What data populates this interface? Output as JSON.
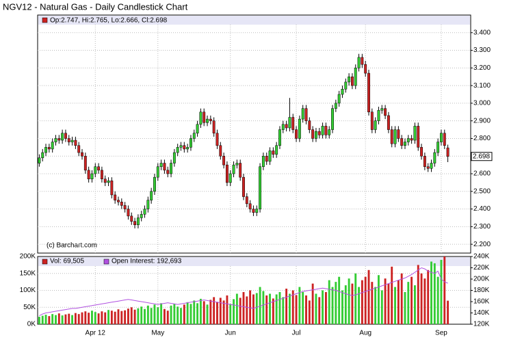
{
  "chart_data": {
    "type": "candlestick",
    "title": "NGV12 - Natural Gas - Daily Candlestick Chart",
    "ohlc_label": "Op:2.747, Hi:2.765, Lo:2.666, Cl:2.698",
    "copyright": "(c) Barchart.com",
    "up_color": "#33cc33",
    "down_color": "#cc2222",
    "grid": true,
    "categories": [
      null,
      null,
      null,
      null,
      null,
      null,
      null,
      null,
      null,
      null,
      null,
      null,
      null,
      null,
      null,
      null,
      null,
      "Apr 12",
      null,
      null,
      null,
      null,
      null,
      null,
      null,
      null,
      null,
      null,
      null,
      null,
      null,
      null,
      null,
      null,
      null,
      null,
      "May",
      null,
      null,
      null,
      null,
      null,
      null,
      null,
      null,
      null,
      null,
      null,
      null,
      null,
      null,
      null,
      null,
      null,
      null,
      null,
      null,
      null,
      "Jun",
      null,
      null,
      null,
      null,
      null,
      null,
      null,
      null,
      null,
      null,
      null,
      null,
      null,
      null,
      null,
      null,
      null,
      null,
      null,
      "Jul",
      null,
      null,
      null,
      null,
      null,
      null,
      null,
      null,
      null,
      null,
      null,
      null,
      null,
      null,
      null,
      null,
      null,
      null,
      null,
      null,
      "Aug",
      null,
      null,
      null,
      null,
      null,
      null,
      null,
      null,
      null,
      null,
      null,
      null,
      null,
      null,
      null,
      null,
      null,
      null,
      null,
      null,
      null,
      null,
      "Sep",
      null,
      null
    ],
    "open": [
      2.66,
      2.69,
      2.72,
      2.75,
      2.74,
      2.78,
      2.8,
      2.79,
      2.83,
      2.8,
      2.78,
      2.79,
      2.76,
      2.72,
      2.7,
      2.62,
      2.57,
      2.6,
      2.64,
      2.62,
      2.57,
      2.55,
      2.56,
      2.48,
      2.45,
      2.44,
      2.42,
      2.4,
      2.36,
      2.33,
      2.31,
      2.35,
      2.37,
      2.4,
      2.45,
      2.5,
      2.58,
      2.64,
      2.66,
      2.62,
      2.6,
      2.66,
      2.72,
      2.75,
      2.76,
      2.74,
      2.75,
      2.8,
      2.83,
      2.88,
      2.95,
      2.89,
      2.91,
      2.9,
      2.83,
      2.76,
      2.7,
      2.65,
      2.55,
      2.6,
      2.65,
      2.66,
      2.58,
      2.47,
      2.43,
      2.4,
      2.38,
      2.4,
      2.64,
      2.7,
      2.67,
      2.73,
      2.71,
      2.76,
      2.85,
      2.88,
      2.86,
      2.92,
      2.85,
      2.8,
      2.91,
      2.97,
      2.9,
      2.85,
      2.8,
      2.84,
      2.82,
      2.87,
      2.82,
      2.85,
      2.97,
      3.0,
      3.05,
      3.08,
      3.12,
      3.15,
      3.1,
      3.2,
      3.26,
      3.22,
      3.17,
      2.95,
      2.85,
      2.9,
      2.96,
      2.97,
      2.93,
      2.85,
      2.77,
      2.85,
      2.8,
      2.76,
      2.78,
      2.8,
      2.79,
      2.87,
      2.75,
      2.7,
      2.64,
      2.63,
      2.66,
      2.72,
      2.78,
      2.83,
      2.747
    ],
    "high": [
      2.71,
      2.74,
      2.77,
      2.77,
      2.8,
      2.82,
      2.82,
      2.85,
      2.85,
      2.82,
      2.81,
      2.81,
      2.78,
      2.74,
      2.72,
      2.64,
      2.62,
      2.66,
      2.66,
      2.64,
      2.59,
      2.58,
      2.58,
      2.5,
      2.47,
      2.46,
      2.44,
      2.42,
      2.38,
      2.35,
      2.37,
      2.39,
      2.42,
      2.47,
      2.52,
      2.6,
      2.66,
      2.68,
      2.68,
      2.64,
      2.68,
      2.74,
      2.77,
      2.78,
      2.78,
      2.77,
      2.82,
      2.85,
      2.9,
      2.97,
      2.97,
      2.93,
      2.93,
      2.92,
      2.85,
      2.78,
      2.72,
      2.67,
      2.62,
      2.67,
      2.68,
      2.68,
      2.6,
      2.49,
      2.45,
      2.42,
      2.42,
      2.66,
      2.72,
      2.72,
      2.75,
      2.75,
      2.78,
      2.87,
      2.9,
      2.9,
      3.03,
      2.94,
      2.87,
      2.93,
      2.99,
      2.99,
      2.92,
      2.87,
      2.86,
      2.86,
      2.89,
      2.89,
      2.87,
      2.99,
      3.02,
      3.07,
      3.1,
      3.14,
      3.17,
      3.17,
      3.22,
      3.28,
      3.28,
      3.24,
      3.19,
      2.97,
      2.92,
      2.98,
      2.99,
      2.99,
      2.95,
      2.87,
      2.87,
      2.87,
      2.82,
      2.8,
      2.82,
      2.82,
      2.89,
      2.89,
      2.77,
      2.72,
      2.66,
      2.68,
      2.74,
      2.8,
      2.85,
      2.85,
      2.765
    ],
    "low": [
      2.64,
      2.67,
      2.7,
      2.72,
      2.72,
      2.76,
      2.77,
      2.77,
      2.78,
      2.76,
      2.76,
      2.74,
      2.7,
      2.68,
      2.6,
      2.55,
      2.55,
      2.58,
      2.6,
      2.55,
      2.53,
      2.53,
      2.46,
      2.43,
      2.42,
      2.4,
      2.38,
      2.34,
      2.31,
      2.29,
      2.29,
      2.33,
      2.35,
      2.38,
      2.43,
      2.48,
      2.56,
      2.62,
      2.6,
      2.58,
      2.58,
      2.64,
      2.7,
      2.73,
      2.72,
      2.72,
      2.73,
      2.78,
      2.81,
      2.86,
      2.87,
      2.87,
      2.88,
      2.81,
      2.74,
      2.68,
      2.63,
      2.53,
      2.53,
      2.58,
      2.63,
      2.56,
      2.45,
      2.41,
      2.38,
      2.36,
      2.36,
      2.38,
      2.62,
      2.65,
      2.65,
      2.69,
      2.69,
      2.74,
      2.83,
      2.84,
      2.84,
      2.83,
      2.78,
      2.78,
      2.89,
      2.88,
      2.83,
      2.78,
      2.78,
      2.8,
      2.8,
      2.8,
      2.8,
      2.83,
      2.95,
      2.98,
      3.03,
      3.06,
      3.1,
      3.08,
      3.08,
      3.18,
      3.2,
      3.15,
      2.93,
      2.83,
      2.83,
      2.88,
      2.94,
      2.91,
      2.83,
      2.75,
      2.75,
      2.78,
      2.74,
      2.74,
      2.76,
      2.77,
      2.77,
      2.73,
      2.68,
      2.62,
      2.61,
      2.61,
      2.64,
      2.7,
      2.76,
      2.74,
      2.666
    ],
    "close": [
      2.69,
      2.72,
      2.75,
      2.74,
      2.78,
      2.8,
      2.79,
      2.83,
      2.8,
      2.78,
      2.79,
      2.76,
      2.72,
      2.7,
      2.62,
      2.57,
      2.6,
      2.64,
      2.62,
      2.57,
      2.55,
      2.56,
      2.48,
      2.45,
      2.44,
      2.42,
      2.4,
      2.36,
      2.33,
      2.31,
      2.35,
      2.37,
      2.4,
      2.45,
      2.5,
      2.58,
      2.64,
      2.66,
      2.62,
      2.6,
      2.66,
      2.72,
      2.75,
      2.76,
      2.74,
      2.75,
      2.8,
      2.83,
      2.88,
      2.95,
      2.89,
      2.91,
      2.9,
      2.83,
      2.76,
      2.7,
      2.65,
      2.55,
      2.6,
      2.65,
      2.66,
      2.58,
      2.47,
      2.43,
      2.4,
      2.38,
      2.4,
      2.64,
      2.7,
      2.67,
      2.73,
      2.71,
      2.76,
      2.85,
      2.88,
      2.86,
      2.92,
      2.85,
      2.8,
      2.91,
      2.97,
      2.9,
      2.85,
      2.8,
      2.84,
      2.82,
      2.87,
      2.82,
      2.85,
      2.97,
      3.0,
      3.05,
      3.08,
      3.12,
      3.15,
      3.1,
      3.2,
      3.26,
      3.22,
      3.17,
      2.95,
      2.85,
      2.9,
      2.96,
      2.97,
      2.93,
      2.85,
      2.77,
      2.85,
      2.8,
      2.76,
      2.78,
      2.8,
      2.79,
      2.87,
      2.75,
      2.7,
      2.64,
      2.63,
      2.66,
      2.72,
      2.78,
      2.83,
      2.76,
      2.698
    ],
    "last_label": {
      "value": 2.698,
      "label": "2.698"
    },
    "ylim": [
      2.15,
      3.5
    ],
    "yticks": [
      {
        "value": 2.2,
        "label": "2.200"
      },
      {
        "value": 2.3,
        "label": "2.300"
      },
      {
        "value": 2.4,
        "label": "2.400"
      },
      {
        "value": 2.5,
        "label": "2.500"
      },
      {
        "value": 2.6,
        "label": "2.600"
      },
      {
        "value": 2.7,
        "label": "2.700"
      },
      {
        "value": 2.8,
        "label": "2.800"
      },
      {
        "value": 2.9,
        "label": "2.900"
      },
      {
        "value": 3.0,
        "label": "3.000"
      },
      {
        "value": 3.1,
        "label": "3.100"
      },
      {
        "value": 3.2,
        "label": "3.200"
      },
      {
        "value": 3.3,
        "label": "3.300"
      },
      {
        "value": 3.4,
        "label": "3.400"
      }
    ],
    "volume": {
      "ylim": [
        0,
        200000
      ],
      "yticks": [
        {
          "value": 0,
          "label": "0K"
        },
        {
          "value": 50000,
          "label": "50K"
        },
        {
          "value": 100000,
          "label": "100K"
        },
        {
          "value": 150000,
          "label": "150K"
        },
        {
          "value": 200000,
          "label": "200K"
        }
      ],
      "y2lim": [
        120000,
        240000
      ],
      "y2ticks": [
        {
          "value": 120000,
          "label": "120K"
        },
        {
          "value": 140000,
          "label": "140K"
        },
        {
          "value": 160000,
          "label": "160K"
        },
        {
          "value": 180000,
          "label": "180K"
        },
        {
          "value": 200000,
          "label": "200K"
        },
        {
          "value": 220000,
          "label": "220K"
        },
        {
          "value": 240000,
          "label": "240K"
        }
      ],
      "series": [
        {
          "name": "Vol: 69,505",
          "values": [
            22000,
            25000,
            28000,
            24000,
            30000,
            27000,
            32000,
            26000,
            29000,
            31000,
            27000,
            33000,
            30000,
            35000,
            38000,
            34000,
            40000,
            36000,
            32000,
            38000,
            35000,
            42000,
            40000,
            37000,
            44000,
            39000,
            41000,
            46000,
            50000,
            43000,
            47000,
            52000,
            45000,
            55000,
            48000,
            58000,
            50000,
            62000,
            45000,
            40000,
            55000,
            60000,
            52000,
            48000,
            58000,
            65000,
            60000,
            70000,
            62000,
            75000,
            68000,
            58000,
            72000,
            80000,
            66000,
            78000,
            70000,
            85000,
            60000,
            74000,
            90000,
            78000,
            95000,
            82000,
            100000,
            88000,
            92000,
            110000,
            98000,
            85000,
            90000,
            76000,
            88000,
            95000,
            80000,
            105000,
            90000,
            100000,
            86000,
            110000,
            95000,
            85000,
            70000,
            120000,
            90000,
            80000,
            100000,
            95000,
            130000,
            110000,
            125000,
            140000,
            100000,
            115000,
            135000,
            120000,
            150000,
            110000,
            130000,
            140000,
            160000,
            125000,
            110000,
            145000,
            100000,
            135000,
            120000,
            170000,
            110000,
            130000,
            150000,
            95000,
            125000,
            140000,
            115000,
            175000,
            150000,
            135000,
            160000,
            185000,
            180000,
            140000,
            190000,
            200000,
            69505
          ]
        },
        {
          "name": "Open Interest: 192,693",
          "color": "#b050e0",
          "axis": "y2",
          "values": [
            135000,
            138000,
            140000,
            141000,
            142000,
            143000,
            144000,
            145000,
            146000,
            147000,
            148000,
            148000,
            149000,
            150000,
            151000,
            152000,
            153000,
            154000,
            155000,
            156000,
            157000,
            158000,
            159000,
            160000,
            161000,
            162000,
            163000,
            164000,
            163000,
            162000,
            161000,
            160000,
            159000,
            158000,
            157000,
            156000,
            155000,
            156000,
            157000,
            158000,
            157000,
            156000,
            155000,
            156000,
            157000,
            158000,
            159000,
            160000,
            161000,
            162000,
            163000,
            162000,
            161000,
            160000,
            159000,
            158000,
            157000,
            156000,
            155000,
            154000,
            153000,
            152000,
            151000,
            150000,
            149000,
            148000,
            150000,
            152000,
            154000,
            156000,
            158000,
            160000,
            162000,
            164000,
            166000,
            168000,
            170000,
            172000,
            174000,
            176000,
            178000,
            179000,
            180000,
            181000,
            182000,
            183000,
            184000,
            183000,
            182000,
            181000,
            180000,
            178000,
            176000,
            174000,
            172000,
            171000,
            172000,
            174000,
            176000,
            178000,
            180000,
            182000,
            184000,
            186000,
            188000,
            190000,
            192000,
            194000,
            196000,
            198000,
            200000,
            202000,
            205000,
            208000,
            212000,
            216000,
            220000,
            218000,
            214000,
            212000,
            210000,
            214000,
            200000,
            195000,
            192693
          ]
        }
      ]
    }
  }
}
